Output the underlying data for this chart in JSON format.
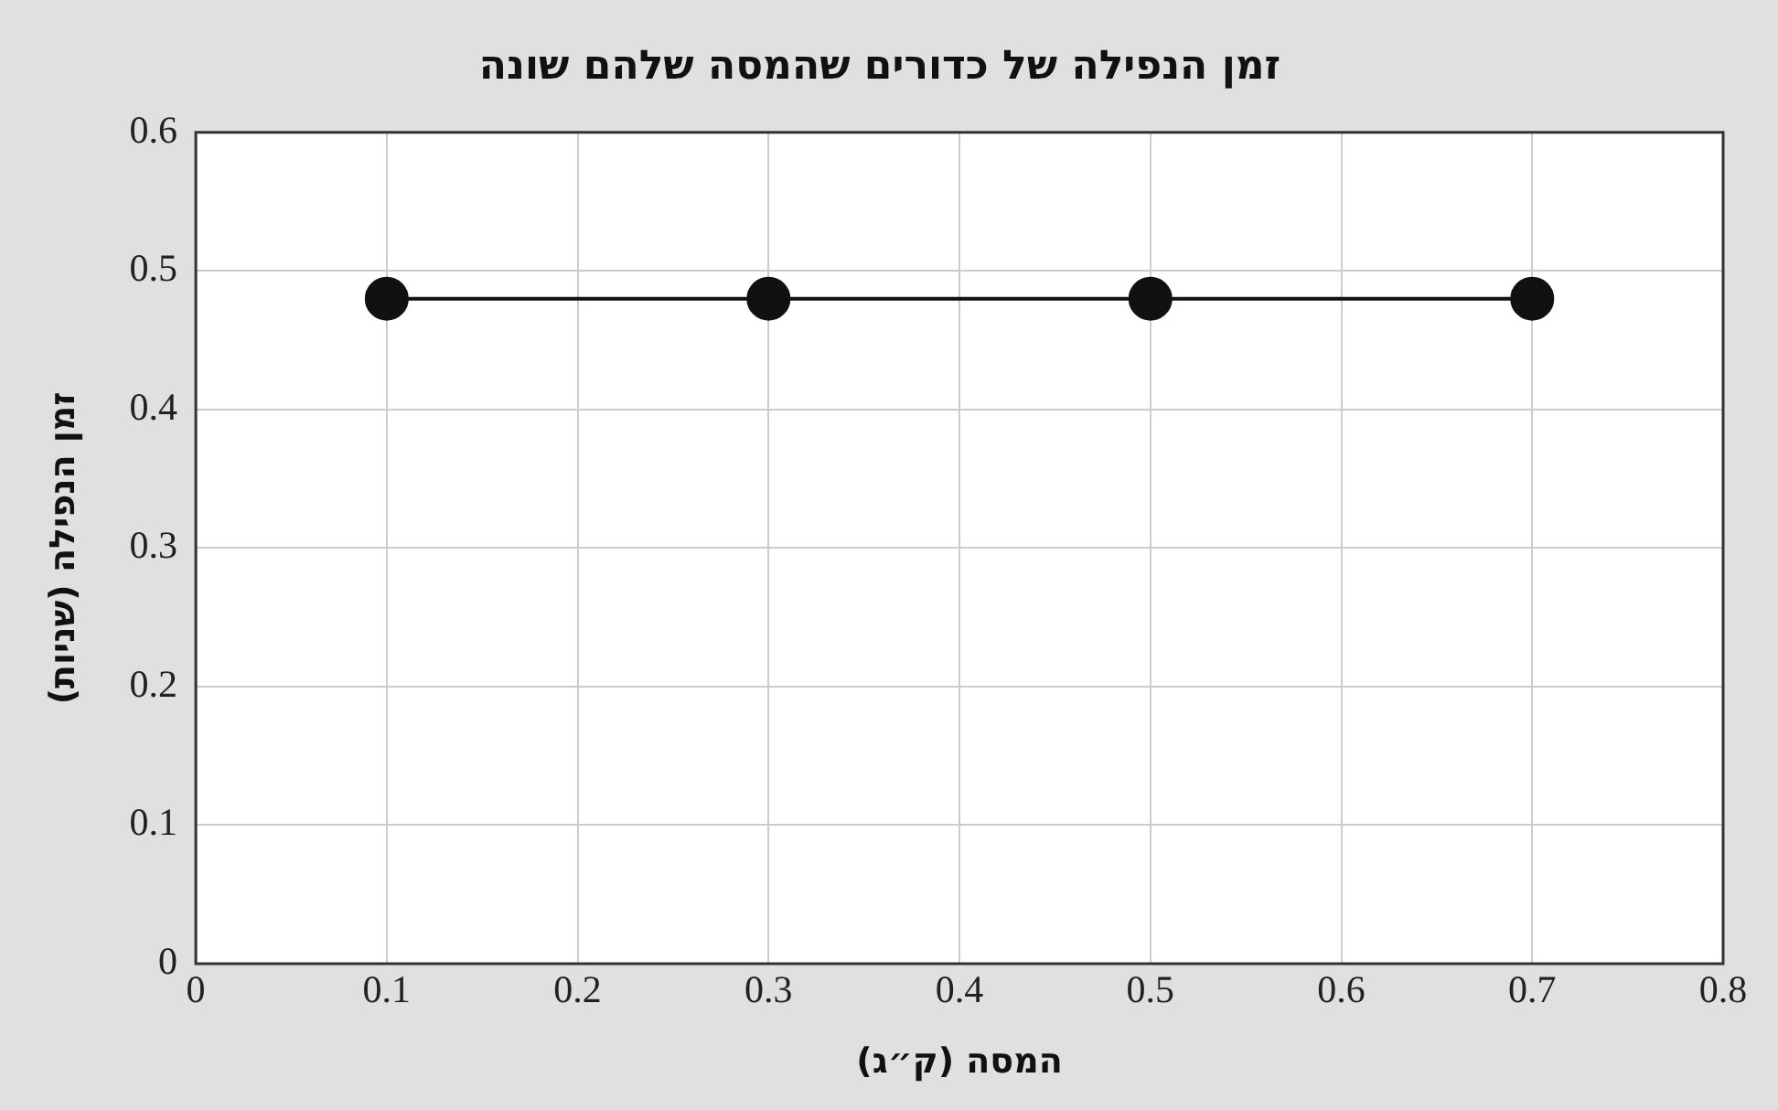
{
  "chart_data": {
    "type": "line",
    "title": "זמן הנפילה של כדורים שהמסה שלהם שונה",
    "xlabel": "המסה (ק״ג)",
    "ylabel": "זמן הנפילה (שניות)",
    "x": [
      0.1,
      0.3,
      0.5,
      0.7
    ],
    "series": [
      {
        "color": "#111111",
        "values": [
          0.48,
          0.48,
          0.48,
          0.48
        ]
      }
    ],
    "xlim": [
      0,
      0.8
    ],
    "xticks": [
      0,
      0.1,
      0.2,
      0.3,
      0.4,
      0.5,
      0.6,
      0.7,
      0.8
    ],
    "ylim": [
      0,
      0.6
    ],
    "yticks": [
      0,
      0.1,
      0.2,
      0.3,
      0.4,
      0.5,
      0.6
    ],
    "grid": true,
    "legend": false,
    "marker": "circle",
    "line_style": "solid"
  }
}
